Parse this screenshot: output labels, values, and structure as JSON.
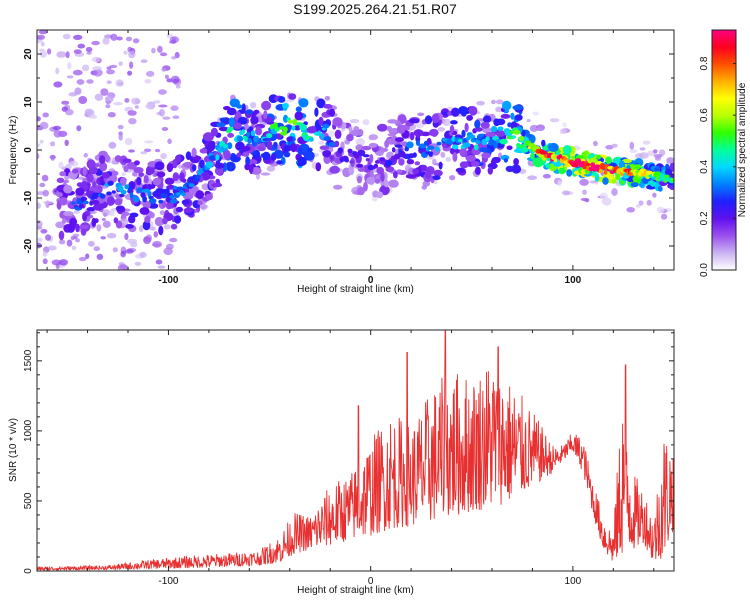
{
  "title": "S199.2025.264.21.51.R07",
  "chart_data": [
    {
      "type": "heatmap",
      "title": "S199.2025.264.21.51.R07",
      "xlabel": "Height of straight line (km)",
      "ylabel": "Frequency (Hz)",
      "xlim": [
        -165,
        150
      ],
      "ylim": [
        -25,
        25
      ],
      "xticks": [
        -100,
        0,
        100
      ],
      "xtick_labels": [
        "-100",
        "0",
        "100"
      ],
      "yticks": [
        -20,
        -10,
        0,
        10,
        20
      ],
      "ytick_labels": [
        "-20",
        "-10",
        "0",
        "10",
        "20"
      ],
      "colorbar": {
        "label": "Normalized spectral amplitude",
        "range": [
          0.0,
          0.93
        ],
        "ticks": [
          0.0,
          0.2,
          0.4,
          0.6,
          0.8
        ],
        "tick_labels": [
          "0.0",
          "0.2",
          "0.4",
          "0.6",
          "0.8"
        ],
        "colors": [
          "#ffffff",
          "#cbb2f2",
          "#9a50ee",
          "#6010ee",
          "#2020ff",
          "#0080ff",
          "#00d8ff",
          "#00ff9a",
          "#30ff00",
          "#b8ff00",
          "#ffff00",
          "#ffb000",
          "#ff5000",
          "#ff0020",
          "#ff0080"
        ]
      },
      "ridge": {
        "x": [
          -145,
          -130,
          -115,
          -100,
          -88,
          -78,
          -70,
          -62,
          -55,
          -48,
          -40,
          -30,
          -22,
          -15,
          -5,
          5,
          15,
          25,
          35,
          45,
          55,
          62,
          70,
          78,
          85,
          95,
          105,
          115,
          125,
          135,
          145
        ],
        "frequency": [
          -11,
          -8,
          -9.5,
          -10,
          -7,
          -2,
          3,
          3.5,
          1,
          4,
          5,
          3,
          3.5,
          -1,
          -2,
          -2.5,
          0,
          0,
          1,
          2,
          2,
          3,
          3,
          1,
          -1,
          -2,
          -3,
          -4,
          -4.5,
          -5,
          -6
        ],
        "amplitude": [
          0.25,
          0.3,
          0.3,
          0.28,
          0.3,
          0.35,
          0.4,
          0.38,
          0.3,
          0.42,
          0.5,
          0.45,
          0.3,
          0.2,
          0.2,
          0.2,
          0.25,
          0.3,
          0.3,
          0.35,
          0.35,
          0.4,
          0.45,
          0.55,
          0.7,
          0.8,
          0.85,
          0.8,
          0.75,
          0.6,
          0.45
        ]
      }
    },
    {
      "type": "line",
      "xlabel": "Height of straight line (km)",
      "ylabel": "SNR (10 * v/v)",
      "xlim": [
        -165,
        150
      ],
      "ylim": [
        0,
        1720
      ],
      "xticks": [
        -100,
        0,
        100
      ],
      "xtick_labels": [
        "-100",
        "0",
        "100"
      ],
      "yticks": [
        0,
        500,
        1000,
        1500
      ],
      "ytick_labels": [
        "0",
        "500",
        "1000",
        "1500"
      ],
      "color": "#e83030",
      "envelope": {
        "x": [
          -165,
          -130,
          -110,
          -90,
          -70,
          -55,
          -45,
          -38,
          -30,
          -20,
          -10,
          0,
          10,
          20,
          30,
          40,
          50,
          60,
          70,
          80,
          90,
          95,
          100,
          105,
          110,
          115,
          120,
          125,
          130,
          135,
          140,
          145,
          150
        ],
        "snr": [
          30,
          40,
          80,
          110,
          130,
          150,
          260,
          420,
          400,
          620,
          700,
          950,
          1150,
          1050,
          1300,
          1450,
          1400,
          1550,
          1350,
          1150,
          900,
          900,
          1000,
          950,
          650,
          400,
          300,
          1400,
          700,
          600,
          400,
          1050,
          900
        ]
      },
      "floor": {
        "x": [
          -165,
          -130,
          -110,
          -90,
          -70,
          -55,
          -45,
          -38,
          -30,
          -20,
          -10,
          0,
          10,
          20,
          30,
          40,
          50,
          60,
          70,
          80,
          90,
          95,
          100,
          105,
          110,
          115,
          120,
          125,
          130,
          135,
          140,
          145,
          150
        ],
        "snr": [
          5,
          10,
          15,
          20,
          30,
          40,
          60,
          120,
          150,
          180,
          220,
          250,
          300,
          320,
          350,
          380,
          420,
          450,
          500,
          600,
          700,
          780,
          850,
          700,
          400,
          150,
          50,
          120,
          150,
          200,
          50,
          100,
          300
        ]
      },
      "peaks": [
        {
          "x": 37,
          "snr": 1720
        },
        {
          "x": 63,
          "snr": 1600
        },
        {
          "x": 126,
          "snr": 1470
        },
        {
          "x": 18,
          "snr": 1560
        },
        {
          "x": -6,
          "snr": 1180
        }
      ]
    }
  ]
}
